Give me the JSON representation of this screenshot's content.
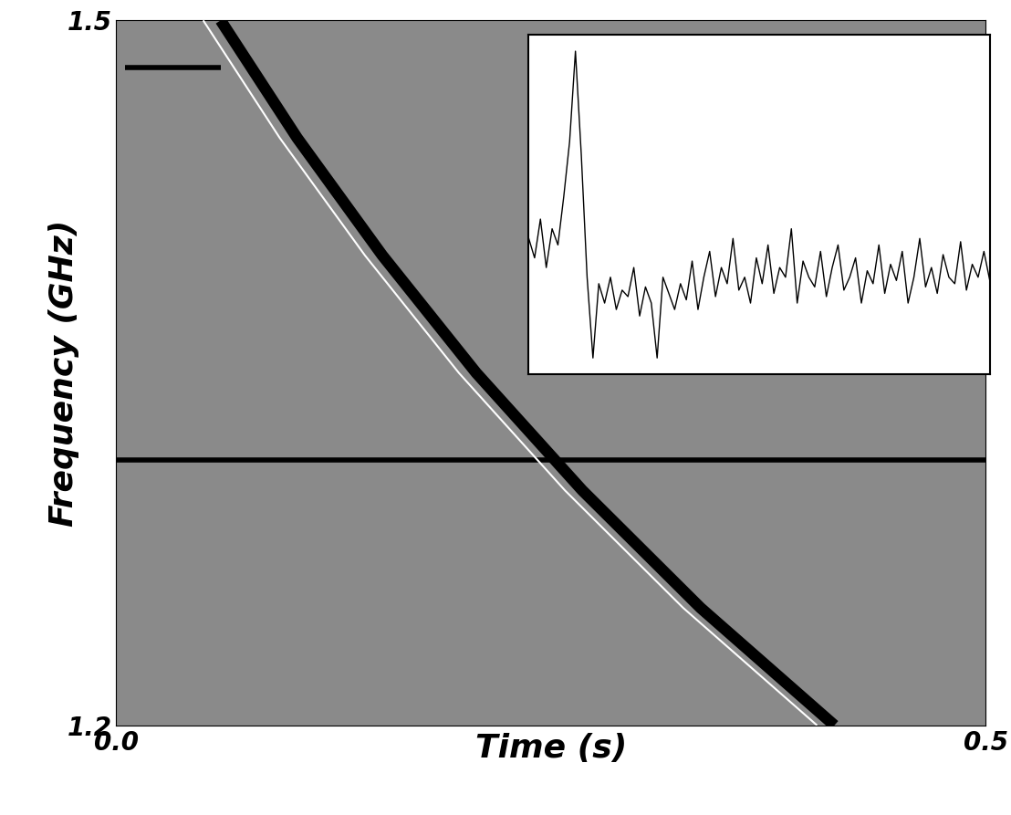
{
  "chart_data": [
    {
      "type": "line",
      "x_label": "Time (s)",
      "y_label": "Frequency (GHz)",
      "xlim": [
        0,
        0.5
      ],
      "ylim": [
        1.2,
        1.5
      ],
      "xticks": [
        {
          "value": 0,
          "label": "0.0"
        },
        0.5
      ],
      "yticks": [
        1.2,
        1.5
      ],
      "series": [
        {
          "color": "#000000",
          "x": [
            0.06,
            0.104,
            0.153,
            0.207,
            0.268,
            0.336,
            0.413
          ],
          "values": [
            1.5,
            1.45,
            1.4,
            1.35,
            1.3,
            1.25,
            1.2
          ]
        },
        {
          "color": "#ffffff",
          "x": [
            0.05,
            0.094,
            0.143,
            0.197,
            0.258,
            0.326,
            0.403
          ],
          "values": [
            1.5,
            1.45,
            1.4,
            1.35,
            1.3,
            1.25,
            1.2
          ]
        },
        {
          "color": "#000000",
          "x": [
            0,
            0.5
          ],
          "values": [
            1.313,
            1.313
          ]
        },
        {
          "color": "#000000",
          "x": [
            0.005,
            0.06
          ],
          "values": [
            1.48,
            1.48
          ]
        }
      ]
    },
    {
      "type": "line",
      "tick_labels": false,
      "color": "#000000",
      "xlim": [
        0,
        79
      ],
      "ylim": [
        0,
        1.05
      ],
      "values": [
        0.42,
        0.36,
        0.48,
        0.33,
        0.45,
        0.4,
        0.55,
        0.72,
        1.0,
        0.68,
        0.3,
        0.05,
        0.28,
        0.22,
        0.3,
        0.2,
        0.26,
        0.24,
        0.33,
        0.18,
        0.27,
        0.22,
        0.05,
        0.3,
        0.25,
        0.2,
        0.28,
        0.23,
        0.35,
        0.2,
        0.3,
        0.38,
        0.24,
        0.33,
        0.28,
        0.42,
        0.26,
        0.3,
        0.22,
        0.36,
        0.28,
        0.4,
        0.25,
        0.33,
        0.3,
        0.45,
        0.22,
        0.35,
        0.3,
        0.27,
        0.38,
        0.24,
        0.33,
        0.4,
        0.26,
        0.3,
        0.36,
        0.22,
        0.32,
        0.28,
        0.4,
        0.25,
        0.34,
        0.29,
        0.38,
        0.22,
        0.3,
        0.42,
        0.27,
        0.33,
        0.25,
        0.37,
        0.3,
        0.28,
        0.41,
        0.26,
        0.34,
        0.3,
        0.38,
        0.29
      ]
    }
  ]
}
